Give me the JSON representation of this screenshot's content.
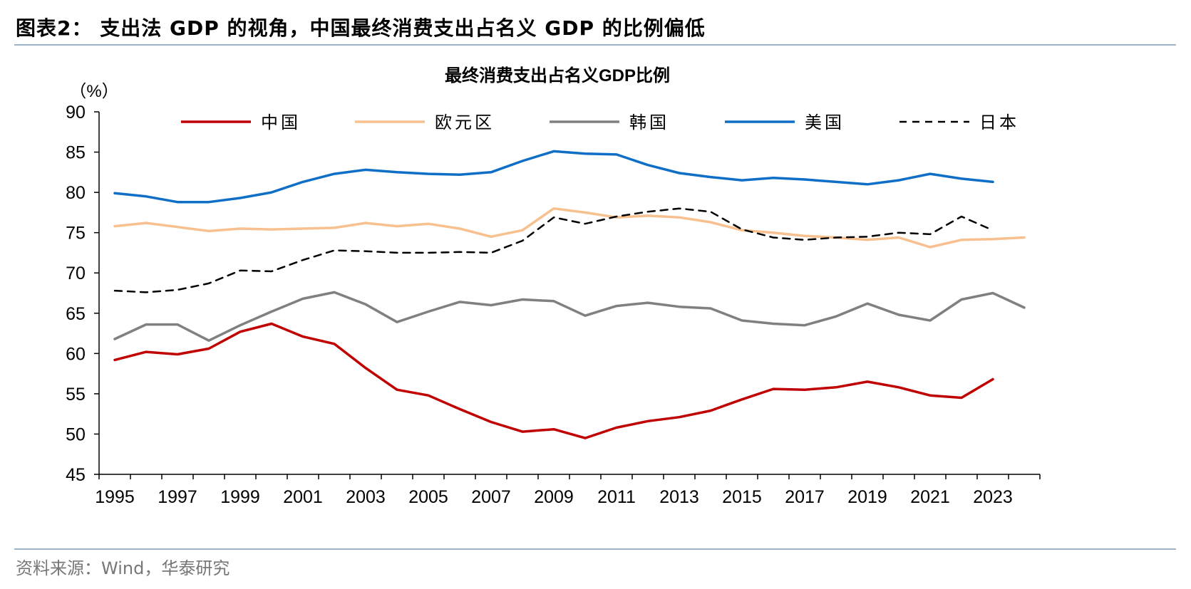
{
  "figure": {
    "title": "图表2：  支出法 GDP 的视角，中国最终消费支出占名义 GDP 的比例偏低",
    "source": "资料来源：Wind，华泰研究"
  },
  "colors": {
    "china": "#c00000",
    "euro": "#f8c08f",
    "korea": "#808080",
    "usa": "#0f6fc6",
    "japan": "#000000",
    "rule": "#9fb3c8"
  },
  "chart_data": {
    "type": "line",
    "title": "最终消费支出占名义GDP比例",
    "ylabel": "（%）",
    "xlabel": "",
    "ylim": [
      45,
      90
    ],
    "yticks": [
      45,
      50,
      55,
      60,
      65,
      70,
      75,
      80,
      85,
      90
    ],
    "x": [
      1995,
      1996,
      1997,
      1998,
      1999,
      2000,
      2001,
      2002,
      2003,
      2004,
      2005,
      2006,
      2007,
      2008,
      2009,
      2010,
      2011,
      2012,
      2013,
      2014,
      2015,
      2016,
      2017,
      2018,
      2019,
      2020,
      2021,
      2022,
      2023,
      2024
    ],
    "xtick_labels": [
      "1995",
      "1997",
      "1999",
      "2001",
      "2003",
      "2005",
      "2007",
      "2009",
      "2011",
      "2013",
      "2015",
      "2017",
      "2019",
      "2021",
      "2023"
    ],
    "legend_position": "top",
    "series": [
      {
        "key": "china",
        "name": "中国",
        "style": "solid",
        "values": [
          59.2,
          60.2,
          59.9,
          60.6,
          62.7,
          63.7,
          62.1,
          61.2,
          58.2,
          55.5,
          54.8,
          53.1,
          51.5,
          50.3,
          50.6,
          49.5,
          50.8,
          51.6,
          52.1,
          52.9,
          54.3,
          55.6,
          55.5,
          55.8,
          56.5,
          55.8,
          54.8,
          54.5,
          56.8,
          null
        ]
      },
      {
        "key": "euro",
        "name": "欧元区",
        "style": "solid",
        "values": [
          75.8,
          76.2,
          75.7,
          75.2,
          75.5,
          75.4,
          75.5,
          75.6,
          76.2,
          75.8,
          76.1,
          75.5,
          74.5,
          75.3,
          78.0,
          77.5,
          76.9,
          77.1,
          76.9,
          76.3,
          75.3,
          75.0,
          74.6,
          74.4,
          74.1,
          74.4,
          73.2,
          74.1,
          74.2,
          74.4
        ]
      },
      {
        "key": "korea",
        "name": "韩国",
        "style": "solid",
        "values": [
          61.8,
          63.6,
          63.6,
          61.6,
          63.5,
          65.2,
          66.8,
          67.6,
          66.1,
          63.9,
          65.2,
          66.4,
          66.0,
          66.7,
          66.5,
          64.7,
          65.9,
          66.3,
          65.8,
          65.6,
          64.1,
          63.7,
          63.5,
          64.6,
          66.2,
          64.8,
          64.1,
          66.7,
          67.5,
          65.7
        ]
      },
      {
        "key": "usa",
        "name": "美国",
        "style": "solid",
        "values": [
          79.9,
          79.5,
          78.8,
          78.8,
          79.3,
          80.0,
          81.3,
          82.3,
          82.8,
          82.5,
          82.3,
          82.2,
          82.5,
          83.9,
          85.1,
          84.8,
          84.7,
          83.4,
          82.4,
          81.9,
          81.5,
          81.8,
          81.6,
          81.3,
          81.0,
          81.5,
          82.3,
          81.7,
          81.3,
          null
        ]
      },
      {
        "key": "japan",
        "name": "日本",
        "style": "dashed",
        "values": [
          67.8,
          67.6,
          67.9,
          68.7,
          70.3,
          70.2,
          71.6,
          72.8,
          72.7,
          72.5,
          72.5,
          72.6,
          72.5,
          74.0,
          76.9,
          76.1,
          77.0,
          77.6,
          78.0,
          77.6,
          75.4,
          74.4,
          74.1,
          74.4,
          74.5,
          75.0,
          74.8,
          77.0,
          75.3,
          null
        ]
      }
    ]
  }
}
